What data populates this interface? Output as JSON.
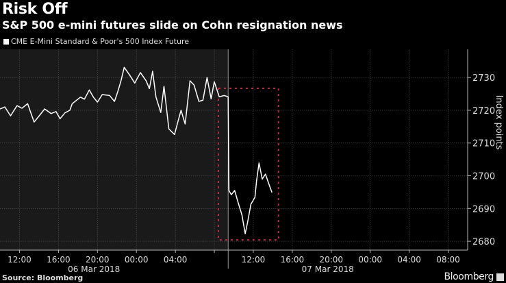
{
  "header": {
    "title": "Risk Off",
    "subtitle": "S&P 500 e-mini futures slide on Cohn resignation news",
    "legend_label": "CME E-Mini Standard & Poor's 500 Index Future"
  },
  "footer": {
    "source": "Source: Bloomberg",
    "brand": "Bloomberg"
  },
  "colors": {
    "background": "#000000",
    "shaded_region": "#1a1a1a",
    "line": "#ffffff",
    "annotation_box": "#d2243c",
    "grid": "#555555"
  },
  "chart_data": {
    "type": "line",
    "title": "Risk Off",
    "subtitle": "S&P 500 e-mini futures slide on Cohn resignation news",
    "ylabel": "Index points",
    "xlabel": "",
    "ylim": [
      2677.3,
      2738.6
    ],
    "xlim": [
      "2018-03-06 10:00",
      "2018-03-08 10:00"
    ],
    "yticks": [
      2680,
      2690,
      2700,
      2710,
      2720,
      2730
    ],
    "xticks": [
      {
        "t": "2018-03-06 12:00",
        "label": "12:00"
      },
      {
        "t": "2018-03-06 16:00",
        "label": "16:00"
      },
      {
        "t": "2018-03-06 20:00",
        "label": "20:00"
      },
      {
        "t": "2018-03-07 00:00",
        "label": "00:00"
      },
      {
        "t": "2018-03-07 04:00",
        "label": "04:00"
      },
      {
        "t": "2018-03-07 08:00",
        "label": ""
      },
      {
        "t": "2018-03-07 12:00",
        "label": "12:00"
      },
      {
        "t": "2018-03-07 16:00",
        "label": "16:00"
      },
      {
        "t": "2018-03-07 20:00",
        "label": "20:00"
      },
      {
        "t": "2018-03-08 00:00",
        "label": "00:00"
      },
      {
        "t": "2018-03-08 04:00",
        "label": "04:00"
      },
      {
        "t": "2018-03-08 08:00",
        "label": "08:00"
      }
    ],
    "date_labels": [
      {
        "t": "2018-03-07 00:00",
        "label": "06 Mar 2018"
      },
      {
        "t": "2018-03-08 00:00",
        "label": "07 Mar 2018"
      }
    ],
    "session_break": "2018-03-07 09:25",
    "grid": true,
    "legend": "top-left",
    "series": [
      {
        "name": "CME E-Mini Standard & Poor's 500 Index Future",
        "points": [
          [
            "2018-03-06 10:00",
            2720.4
          ],
          [
            "2018-03-06 10:30",
            2721.0
          ],
          [
            "2018-03-06 11:05",
            2718.3
          ],
          [
            "2018-03-06 11:45",
            2721.4
          ],
          [
            "2018-03-06 12:15",
            2720.6
          ],
          [
            "2018-03-06 12:50",
            2722.0
          ],
          [
            "2018-03-06 13:30",
            2716.4
          ],
          [
            "2018-03-06 14:00",
            2718.2
          ],
          [
            "2018-03-06 14:35",
            2720.4
          ],
          [
            "2018-03-06 15:15",
            2719.0
          ],
          [
            "2018-03-06 15:45",
            2719.6
          ],
          [
            "2018-03-06 16:10",
            2717.4
          ],
          [
            "2018-03-06 16:40",
            2719.2
          ],
          [
            "2018-03-06 17:10",
            2720.0
          ],
          [
            "2018-03-06 17:25",
            2722.0
          ],
          [
            "2018-03-06 18:15",
            2724.0
          ],
          [
            "2018-03-06 18:40",
            2723.4
          ],
          [
            "2018-03-06 19:10",
            2726.2
          ],
          [
            "2018-03-06 19:35",
            2724.0
          ],
          [
            "2018-03-06 20:00",
            2722.5
          ],
          [
            "2018-03-06 20:30",
            2724.8
          ],
          [
            "2018-03-06 21:15",
            2724.5
          ],
          [
            "2018-03-06 21:45",
            2722.7
          ],
          [
            "2018-03-06 22:05",
            2725.6
          ],
          [
            "2018-03-06 22:25",
            2729.0
          ],
          [
            "2018-03-06 22:45",
            2733.1
          ],
          [
            "2018-03-06 23:15",
            2731.0
          ],
          [
            "2018-03-06 23:50",
            2728.3
          ],
          [
            "2018-03-07 00:25",
            2731.5
          ],
          [
            "2018-03-07 01:00",
            2729.0
          ],
          [
            "2018-03-07 01:20",
            2726.6
          ],
          [
            "2018-03-07 01:40",
            2731.9
          ],
          [
            "2018-03-07 02:00",
            2724.1
          ],
          [
            "2018-03-07 02:30",
            2719.3
          ],
          [
            "2018-03-07 02:50",
            2727.3
          ],
          [
            "2018-03-07 03:20",
            2714.3
          ],
          [
            "2018-03-07 03:55",
            2712.6
          ],
          [
            "2018-03-07 04:15",
            2716.4
          ],
          [
            "2018-03-07 04:35",
            2720.0
          ],
          [
            "2018-03-07 05:00",
            2715.8
          ],
          [
            "2018-03-07 05:30",
            2729.0
          ],
          [
            "2018-03-07 05:55",
            2727.7
          ],
          [
            "2018-03-07 06:25",
            2722.7
          ],
          [
            "2018-03-07 06:50",
            2723.1
          ],
          [
            "2018-03-07 07:15",
            2730.0
          ],
          [
            "2018-03-07 07:40",
            2723.5
          ],
          [
            "2018-03-07 08:00",
            2728.7
          ],
          [
            "2018-03-07 08:30",
            2724.1
          ],
          [
            "2018-03-07 09:00",
            2724.5
          ],
          [
            "2018-03-07 09:25",
            2724.1
          ],
          [
            "2018-03-07 09:30",
            2695.5
          ],
          [
            "2018-03-07 09:45",
            2694.2
          ],
          [
            "2018-03-07 10:05",
            2695.5
          ],
          [
            "2018-03-07 10:25",
            2692.1
          ],
          [
            "2018-03-07 10:50",
            2688.0
          ],
          [
            "2018-03-07 11:10",
            2682.3
          ],
          [
            "2018-03-07 11:25",
            2685.9
          ],
          [
            "2018-03-07 11:45",
            2691.3
          ],
          [
            "2018-03-07 12:10",
            2693.4
          ],
          [
            "2018-03-07 12:20",
            2698.4
          ],
          [
            "2018-03-07 12:35",
            2703.9
          ],
          [
            "2018-03-07 12:55",
            2699.0
          ],
          [
            "2018-03-07 13:15",
            2700.5
          ],
          [
            "2018-03-07 13:35",
            2697.6
          ],
          [
            "2018-03-07 13:55",
            2694.9
          ]
        ]
      }
    ],
    "annotations": [
      {
        "type": "dashed-box",
        "t0": "2018-03-07 08:25",
        "t1": "2018-03-07 14:35",
        "y0": 2680.4,
        "y1": 2726.7
      }
    ]
  }
}
